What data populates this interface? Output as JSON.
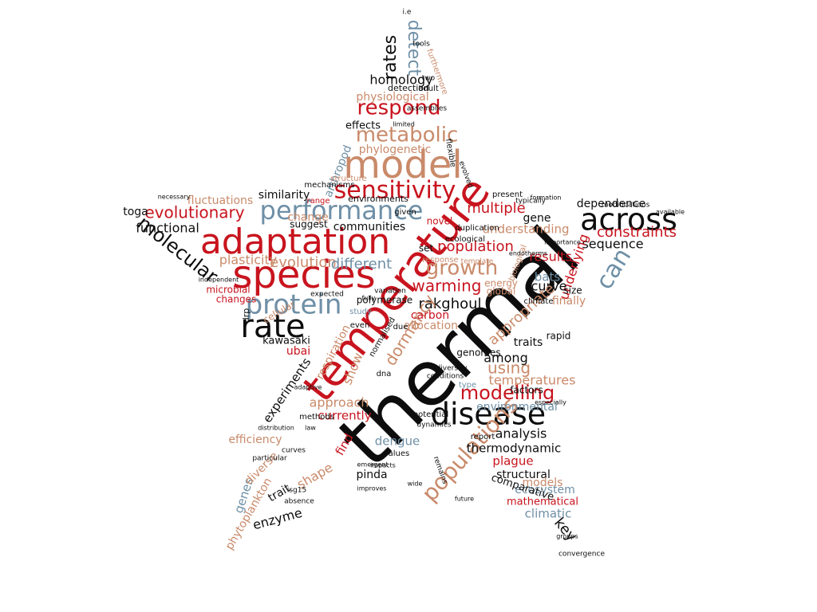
{
  "colors": {
    "black": "#0d0d0d",
    "red": "#c8141e",
    "tan": "#c98a6a",
    "blue": "#6e8fa6"
  },
  "words": [
    {
      "text": "thermal",
      "color": "black"
    },
    {
      "text": "temperature",
      "color": "red"
    },
    {
      "text": "species",
      "color": "red"
    },
    {
      "text": "adaptation",
      "color": "red"
    },
    {
      "text": "model",
      "color": "tan"
    },
    {
      "text": "performance",
      "color": "blue"
    },
    {
      "text": "across",
      "color": "black"
    },
    {
      "text": "rate",
      "color": "black"
    },
    {
      "text": "protein",
      "color": "blue"
    },
    {
      "text": "disease",
      "color": "black"
    },
    {
      "text": "sensitivity",
      "color": "red"
    },
    {
      "text": "metabolic",
      "color": "tan"
    },
    {
      "text": "respond",
      "color": "red"
    },
    {
      "text": "populations",
      "color": "tan"
    },
    {
      "text": "growth",
      "color": "tan"
    },
    {
      "text": "modelling",
      "color": "red"
    },
    {
      "text": "evolutionary",
      "color": "red"
    },
    {
      "text": "molecular",
      "color": "black"
    },
    {
      "text": "can",
      "color": "blue"
    },
    {
      "text": "detect",
      "color": "blue"
    },
    {
      "text": "rates",
      "color": "black"
    },
    {
      "text": "homology",
      "color": "black"
    },
    {
      "text": "physiological",
      "color": "tan"
    },
    {
      "text": "phylogenetic",
      "color": "tan"
    },
    {
      "text": "effects",
      "color": "black"
    },
    {
      "text": "multiple",
      "color": "red"
    },
    {
      "text": "population",
      "color": "red"
    },
    {
      "text": "warming",
      "color": "red"
    },
    {
      "text": "rakghoul",
      "color": "black"
    },
    {
      "text": "dormancy",
      "color": "tan"
    },
    {
      "text": "using",
      "color": "tan"
    },
    {
      "text": "show",
      "color": "tan"
    },
    {
      "text": "evolution",
      "color": "tan"
    },
    {
      "text": "different",
      "color": "blue"
    },
    {
      "text": "plasticity",
      "color": "tan"
    },
    {
      "text": "functional",
      "color": "black"
    },
    {
      "text": "toga",
      "color": "black"
    },
    {
      "text": "constraints",
      "color": "red"
    },
    {
      "text": "sequence",
      "color": "black"
    },
    {
      "text": "dependence",
      "color": "black"
    },
    {
      "text": "results",
      "color": "red"
    },
    {
      "text": "gene",
      "color": "black"
    },
    {
      "text": "understanding",
      "color": "tan"
    },
    {
      "text": "communities",
      "color": "black"
    },
    {
      "text": "environments",
      "color": "black"
    },
    {
      "text": "similarity",
      "color": "black"
    },
    {
      "text": "fluctuations",
      "color": "tan"
    },
    {
      "text": "change",
      "color": "tan"
    },
    {
      "text": "suggest",
      "color": "black"
    },
    {
      "text": "underlying",
      "color": "red"
    },
    {
      "text": "bats",
      "color": "blue"
    },
    {
      "text": "curve",
      "color": "black"
    },
    {
      "text": "finally",
      "color": "tan"
    },
    {
      "text": "appropriate",
      "color": "tan"
    },
    {
      "text": "among",
      "color": "black"
    },
    {
      "text": "carbon",
      "color": "red"
    },
    {
      "text": "allocation",
      "color": "tan"
    },
    {
      "text": "temperatures",
      "color": "tan"
    },
    {
      "text": "kawasaki",
      "color": "black"
    },
    {
      "text": "ubai",
      "color": "red"
    },
    {
      "text": "respiration",
      "color": "tan"
    },
    {
      "text": "experiments",
      "color": "black"
    },
    {
      "text": "approach",
      "color": "tan"
    },
    {
      "text": "currently",
      "color": "red"
    },
    {
      "text": "environmental",
      "color": "blue"
    },
    {
      "text": "analysis",
      "color": "black"
    },
    {
      "text": "thermodynamic",
      "color": "black"
    },
    {
      "text": "dengue",
      "color": "blue"
    },
    {
      "text": "plague",
      "color": "red"
    },
    {
      "text": "structural",
      "color": "black"
    },
    {
      "text": "ecosystem",
      "color": "blue"
    },
    {
      "text": "models",
      "color": "tan"
    },
    {
      "text": "mathematical",
      "color": "red"
    },
    {
      "text": "comparative",
      "color": "black"
    },
    {
      "text": "climatic",
      "color": "blue"
    },
    {
      "text": "key",
      "color": "black"
    },
    {
      "text": "genes",
      "color": "blue"
    },
    {
      "text": "phytoplankton",
      "color": "tan"
    },
    {
      "text": "enzyme",
      "color": "black"
    },
    {
      "text": "trait",
      "color": "black"
    },
    {
      "text": "shape",
      "color": "tan"
    },
    {
      "text": "find",
      "color": "red"
    },
    {
      "text": "pinda",
      "color": "black"
    },
    {
      "text": "efficiency",
      "color": "tan"
    },
    {
      "text": "diverse",
      "color": "tan"
    },
    {
      "text": "cellular",
      "color": "tan"
    },
    {
      "text": "microbial",
      "color": "red"
    },
    {
      "text": "changes",
      "color": "red"
    },
    {
      "text": "traits",
      "color": "black"
    },
    {
      "text": "rapid",
      "color": "black"
    },
    {
      "text": "genomes",
      "color": "black"
    },
    {
      "text": "factors",
      "color": "black"
    },
    {
      "text": "energy",
      "color": "tan"
    },
    {
      "text": "global",
      "color": "tan"
    },
    {
      "text": "climate",
      "color": "black"
    },
    {
      "text": "size",
      "color": "black"
    },
    {
      "text": "polymerase",
      "color": "black"
    },
    {
      "text": "duplication",
      "color": "black"
    },
    {
      "text": "ecological",
      "color": "black"
    },
    {
      "text": "set",
      "color": "black"
    },
    {
      "text": "response",
      "color": "tan"
    },
    {
      "text": "template",
      "color": "tan"
    },
    {
      "text": "arthropod",
      "color": "blue"
    },
    {
      "text": "structure",
      "color": "tan"
    },
    {
      "text": "mechanisms",
      "color": "black"
    },
    {
      "text": "given",
      "color": "black"
    },
    {
      "text": "novel",
      "color": "red"
    },
    {
      "text": "range",
      "color": "red"
    },
    {
      "text": "present",
      "color": "black"
    },
    {
      "text": "typically",
      "color": "black"
    },
    {
      "text": "detection",
      "color": "black"
    },
    {
      "text": "adult",
      "color": "black"
    },
    {
      "text": "assemblies",
      "color": "black"
    },
    {
      "text": "flexible",
      "color": "black"
    },
    {
      "text": "evolved",
      "color": "black"
    },
    {
      "text": "limited",
      "color": "black"
    },
    {
      "text": "biological",
      "color": "tan"
    },
    {
      "text": "expected",
      "color": "black"
    },
    {
      "text": "methods",
      "color": "black"
    },
    {
      "text": "report",
      "color": "black"
    },
    {
      "text": "remains",
      "color": "black"
    },
    {
      "text": "convergence",
      "color": "black"
    },
    {
      "text": "groups",
      "color": "black"
    },
    {
      "text": "modifications",
      "color": "black"
    },
    {
      "text": "formation",
      "color": "black"
    },
    {
      "text": "i.e",
      "color": "black"
    },
    {
      "text": "two",
      "color": "black"
    },
    {
      "text": "furthermore",
      "color": "tan"
    },
    {
      "text": "tools",
      "color": "black"
    },
    {
      "text": "normalised",
      "color": "black"
    },
    {
      "text": "due",
      "color": "black"
    },
    {
      "text": "dna",
      "color": "black"
    },
    {
      "text": "potential",
      "color": "black"
    },
    {
      "text": "adaptive",
      "color": "black"
    },
    {
      "text": "isg15",
      "color": "black"
    },
    {
      "text": "absence",
      "color": "black"
    },
    {
      "text": "curves",
      "color": "black"
    },
    {
      "text": "drp",
      "color": "black"
    },
    {
      "text": "necessary",
      "color": "black"
    },
    {
      "text": "diversity",
      "color": "black"
    },
    {
      "text": "conditions",
      "color": "black"
    },
    {
      "text": "type",
      "color": "blue"
    },
    {
      "text": "dynamics",
      "color": "black"
    },
    {
      "text": "especially",
      "color": "black"
    },
    {
      "text": "values",
      "color": "black"
    },
    {
      "text": "study",
      "color": "blue"
    },
    {
      "text": "fully",
      "color": "black"
    },
    {
      "text": "law",
      "color": "black"
    },
    {
      "text": "distribution",
      "color": "black"
    },
    {
      "text": "particular",
      "color": "black"
    },
    {
      "text": "even",
      "color": "black"
    },
    {
      "text": "variation",
      "color": "black"
    },
    {
      "text": "independent",
      "color": "black"
    },
    {
      "text": "impacts",
      "color": "black"
    },
    {
      "text": "wide",
      "color": "black"
    },
    {
      "text": "improves",
      "color": "black"
    },
    {
      "text": "emergent",
      "color": "black"
    },
    {
      "text": "future",
      "color": "black"
    },
    {
      "text": "importance",
      "color": "black"
    },
    {
      "text": "available",
      "color": "black"
    },
    {
      "text": "endotherms",
      "color": "black"
    }
  ]
}
